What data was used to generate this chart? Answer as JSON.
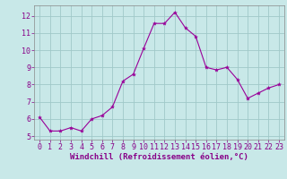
{
  "x": [
    0,
    1,
    2,
    3,
    4,
    5,
    6,
    7,
    8,
    9,
    10,
    11,
    12,
    13,
    14,
    15,
    16,
    17,
    18,
    19,
    20,
    21,
    22,
    23
  ],
  "y": [
    6.1,
    5.3,
    5.3,
    5.5,
    5.3,
    6.0,
    6.2,
    6.7,
    8.2,
    8.6,
    10.1,
    11.55,
    11.55,
    12.2,
    11.3,
    10.8,
    9.0,
    8.85,
    9.0,
    8.3,
    7.2,
    7.5,
    7.8,
    8.0
  ],
  "line_color": "#990099",
  "marker": "*",
  "marker_color": "#990099",
  "bg_color": "#c8e8e8",
  "grid_color": "#a0c8c8",
  "xlim": [
    -0.5,
    23.5
  ],
  "ylim": [
    4.8,
    12.6
  ],
  "yticks": [
    5,
    6,
    7,
    8,
    9,
    10,
    11,
    12
  ],
  "xticks": [
    0,
    1,
    2,
    3,
    4,
    5,
    6,
    7,
    8,
    9,
    10,
    11,
    12,
    13,
    14,
    15,
    16,
    17,
    18,
    19,
    20,
    21,
    22,
    23
  ],
  "xlabel": "Windchill (Refroidissement éolien,°C)",
  "xlabel_fontsize": 6.5,
  "tick_fontsize": 6,
  "label_color": "#880088",
  "spine_color": "#888888"
}
